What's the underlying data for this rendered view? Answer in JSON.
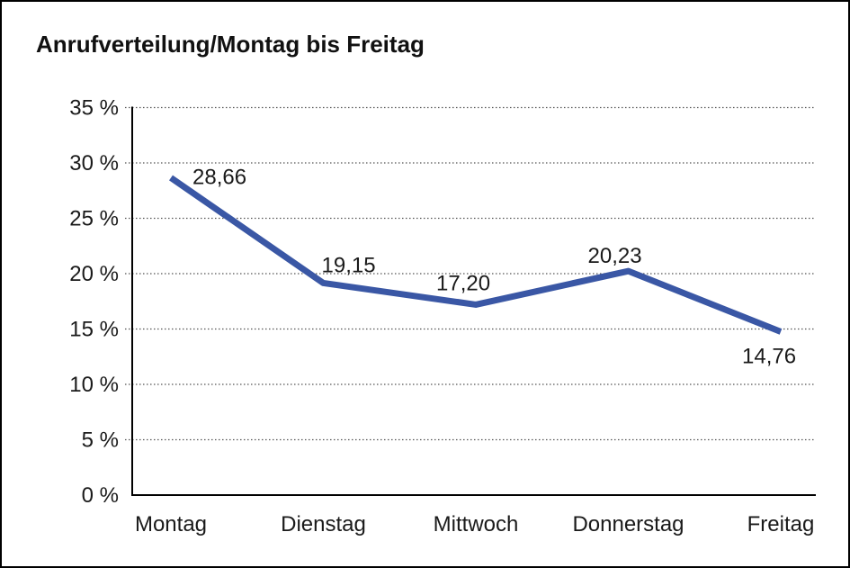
{
  "chart_data": {
    "type": "line",
    "title": "Anrufverteilung/Montag bis Freitag",
    "categories": [
      "Montag",
      "Dienstag",
      "Mittwoch",
      "Donnerstag",
      "Freitag"
    ],
    "values": [
      28.66,
      19.15,
      17.2,
      20.23,
      14.76
    ],
    "data_labels": [
      "28,66",
      "19,15",
      "17,20",
      "20,23",
      "14,76"
    ],
    "series_name": "Anrufverteilung",
    "xlabel": "",
    "ylabel": "",
    "ylim": [
      0,
      35
    ],
    "y_tick_step": 5,
    "y_tick_labels": [
      "0 %",
      "5 %",
      "10 %",
      "15 %",
      "20 %",
      "25 %",
      "30 %",
      "35 %"
    ],
    "grid": "horizontal-dotted",
    "legend": "none",
    "line_color": "#3A57A5",
    "axis_color": "#000000",
    "gridline_color": "#555555",
    "text_color": "#1a1a1a"
  }
}
